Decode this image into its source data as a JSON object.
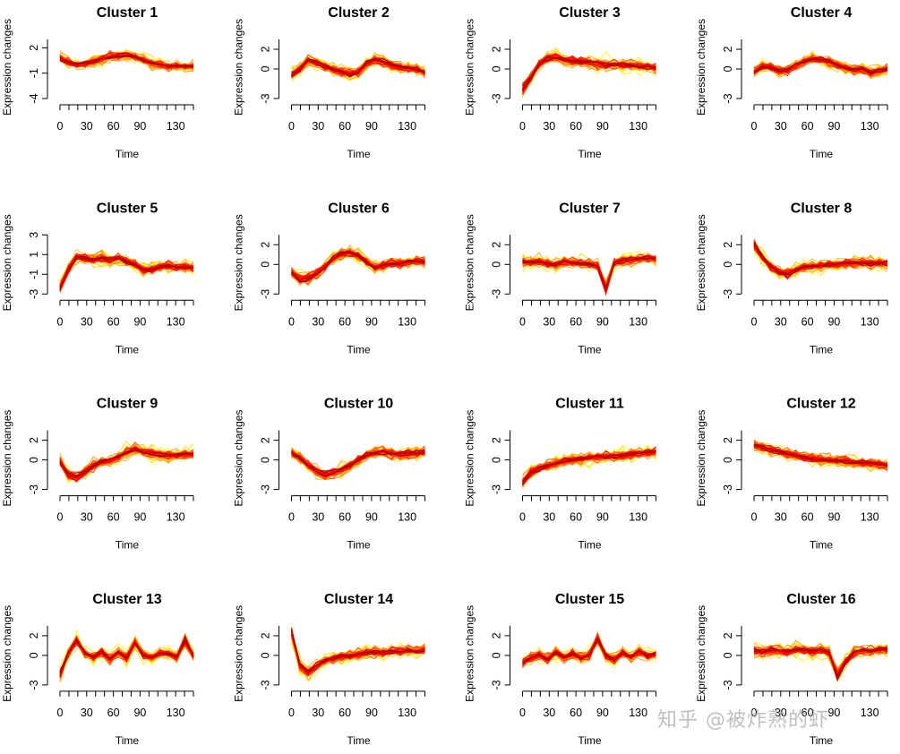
{
  "watermark": "知乎 @被炸熟的虾",
  "colors": {
    "low": "#ffff00",
    "high": "#ff0000",
    "dark": "#b00000",
    "axis": "#000000"
  },
  "chart_data": [
    {
      "type": "line",
      "title": "Cluster 1",
      "xlabel": "Time",
      "ylabel": "Expression changes",
      "yticks": [
        "2",
        "-1",
        "-4"
      ],
      "ylim": [
        -4,
        3
      ],
      "xticks": [
        "0",
        "30",
        "60",
        "90",
        "130"
      ],
      "xlim": [
        0,
        150
      ],
      "profile": [
        0.8,
        0.3,
        0,
        0.2,
        0.4,
        0.7,
        1,
        1.1,
        1.2,
        1,
        0.6,
        0.2,
        0,
        -0.2,
        -0.1,
        -0.3,
        -0.2
      ]
    },
    {
      "type": "line",
      "title": "Cluster 2",
      "xlabel": "Time",
      "ylabel": "Expression changes",
      "yticks": [
        "2",
        "0",
        "-3"
      ],
      "ylim": [
        -3,
        3
      ],
      "xticks": [
        "0",
        "30",
        "60",
        "90",
        "130"
      ],
      "xlim": [
        0,
        150
      ],
      "profile": [
        -0.6,
        -0.1,
        0.9,
        0.7,
        0.3,
        0,
        -0.3,
        -0.5,
        -0.4,
        0.6,
        1,
        0.8,
        0.4,
        0.2,
        0.1,
        0,
        -0.4
      ]
    },
    {
      "type": "line",
      "title": "Cluster 3",
      "xlabel": "Time",
      "ylabel": "Expression changes",
      "yticks": [
        "2",
        "0",
        "-3"
      ],
      "ylim": [
        -3,
        3
      ],
      "xticks": [
        "0",
        "30",
        "60",
        "90",
        "130"
      ],
      "xlim": [
        0,
        150
      ],
      "profile": [
        -2.2,
        -1,
        0.6,
        1.2,
        1.3,
        1,
        0.9,
        0.8,
        0.7,
        0.6,
        0.5,
        0.5,
        0.4,
        0.4,
        0.3,
        0.2,
        0.1
      ]
    },
    {
      "type": "line",
      "title": "Cluster 4",
      "xlabel": "Time",
      "ylabel": "Expression changes",
      "yticks": [
        "2",
        "0",
        "-3"
      ],
      "ylim": [
        -3,
        3
      ],
      "xticks": [
        "0",
        "30",
        "60",
        "90",
        "130"
      ],
      "xlim": [
        0,
        150
      ],
      "profile": [
        -0.3,
        0.3,
        0.2,
        -0.2,
        -0.1,
        0.4,
        0.8,
        1.1,
        1,
        0.8,
        0.4,
        0.1,
        -0.1,
        0,
        -0.4,
        -0.1,
        0
      ]
    },
    {
      "type": "line",
      "title": "Cluster 5",
      "xlabel": "Time",
      "ylabel": "Expression changes",
      "yticks": [
        "3",
        "1",
        "-1",
        "-3"
      ],
      "ylim": [
        -3,
        3
      ],
      "xticks": [
        "0",
        "30",
        "60",
        "90",
        "130"
      ],
      "xlim": [
        0,
        150
      ],
      "profile": [
        -2.4,
        -0.5,
        0.8,
        0.7,
        0.5,
        0.6,
        0.4,
        0.7,
        0.3,
        0,
        -0.6,
        -0.5,
        -0.2,
        -0.1,
        -0.3,
        -0.2,
        -0.4
      ]
    },
    {
      "type": "line",
      "title": "Cluster 6",
      "xlabel": "Time",
      "ylabel": "Expression changes",
      "yticks": [
        "2",
        "0",
        "-3"
      ],
      "ylim": [
        -3,
        3
      ],
      "xticks": [
        "0",
        "30",
        "60",
        "90",
        "130"
      ],
      "xlim": [
        0,
        150
      ],
      "profile": [
        -0.8,
        -1.6,
        -1.5,
        -1,
        -0.2,
        0.7,
        1.2,
        1.3,
        1,
        0.3,
        -0.3,
        0,
        0.2,
        0.1,
        0.3,
        0.4,
        0.2
      ]
    },
    {
      "type": "line",
      "title": "Cluster 7",
      "xlabel": "Time",
      "ylabel": "Expression changes",
      "yticks": [
        "2",
        "0",
        "-3"
      ],
      "ylim": [
        -3,
        3
      ],
      "xticks": [
        "0",
        "30",
        "60",
        "90",
        "130"
      ],
      "xlim": [
        0,
        150
      ],
      "profile": [
        0.3,
        0.2,
        0.3,
        0.1,
        0,
        0.3,
        0.2,
        0.1,
        0,
        -0.2,
        -2.5,
        0.1,
        0.4,
        0.5,
        0.6,
        0.7,
        0.6
      ]
    },
    {
      "type": "line",
      "title": "Cluster 8",
      "xlabel": "Time",
      "ylabel": "Expression changes",
      "yticks": [
        "2",
        "0",
        "-3"
      ],
      "ylim": [
        -3,
        3
      ],
      "xticks": [
        "0",
        "30",
        "60",
        "90",
        "130"
      ],
      "xlim": [
        0,
        150
      ],
      "profile": [
        2.2,
        0.8,
        -0.2,
        -0.8,
        -1,
        -0.6,
        -0.3,
        -0.2,
        -0.1,
        0,
        0,
        0.1,
        0.1,
        0.2,
        0.1,
        0.2,
        0.1
      ]
    },
    {
      "type": "line",
      "title": "Cluster 9",
      "xlabel": "Time",
      "ylabel": "Expression changes",
      "yticks": [
        "2",
        "0",
        "-3"
      ],
      "ylim": [
        -3,
        3
      ],
      "xticks": [
        "0",
        "30",
        "60",
        "90",
        "130"
      ],
      "xlim": [
        0,
        150
      ],
      "profile": [
        -0.2,
        -1.6,
        -1.9,
        -1.3,
        -0.6,
        -0.2,
        0,
        0.3,
        0.8,
        1.2,
        0.9,
        0.7,
        0.6,
        0.5,
        0.5,
        0.6,
        0.6
      ]
    },
    {
      "type": "line",
      "title": "Cluster 10",
      "xlabel": "Time",
      "ylabel": "Expression changes",
      "yticks": [
        "2",
        "0",
        "-3"
      ],
      "ylim": [
        -3,
        3
      ],
      "xticks": [
        "0",
        "30",
        "60",
        "90",
        "130"
      ],
      "xlim": [
        0,
        150
      ],
      "profile": [
        0.8,
        0.2,
        -0.6,
        -1.3,
        -1.7,
        -1.4,
        -1,
        -0.6,
        0,
        0.5,
        0.8,
        0.9,
        0.7,
        0.6,
        0.7,
        0.8,
        0.9
      ]
    },
    {
      "type": "line",
      "title": "Cluster 11",
      "xlabel": "Time",
      "ylabel": "Expression changes",
      "yticks": [
        "2",
        "0",
        "-3"
      ],
      "ylim": [
        -3,
        3
      ],
      "xticks": [
        "0",
        "30",
        "60",
        "90",
        "130"
      ],
      "xlim": [
        0,
        150
      ],
      "profile": [
        -2.4,
        -1.3,
        -0.9,
        -0.6,
        -0.3,
        -0.1,
        0,
        0.1,
        0.2,
        0.3,
        0.4,
        0.4,
        0.5,
        0.6,
        0.7,
        0.8,
        0.9
      ]
    },
    {
      "type": "line",
      "title": "Cluster 12",
      "xlabel": "Time",
      "ylabel": "Expression changes",
      "yticks": [
        "2",
        "0",
        "-3"
      ],
      "ylim": [
        -3,
        3
      ],
      "xticks": [
        "0",
        "30",
        "60",
        "90",
        "130"
      ],
      "xlim": [
        0,
        150
      ],
      "profile": [
        1.6,
        1.4,
        1.1,
        0.9,
        0.7,
        0.5,
        0.3,
        0.2,
        0.1,
        0,
        -0.1,
        -0.2,
        -0.3,
        -0.3,
        -0.4,
        -0.5,
        -0.6
      ]
    },
    {
      "type": "line",
      "title": "Cluster 13",
      "xlabel": "Time",
      "ylabel": "Expression changes",
      "yticks": [
        "2",
        "0",
        "-3"
      ],
      "ylim": [
        -3,
        3
      ],
      "xticks": [
        "0",
        "30",
        "60",
        "90",
        "130"
      ],
      "xlim": [
        0,
        150
      ],
      "profile": [
        -2,
        0.2,
        1.6,
        0.3,
        -0.2,
        0.3,
        -0.4,
        0.4,
        -0.3,
        1.4,
        0.1,
        -0.3,
        0.3,
        0.2,
        -0.2,
        1.6,
        0
      ]
    },
    {
      "type": "line",
      "title": "Cluster 14",
      "xlabel": "Time",
      "ylabel": "Expression changes",
      "yticks": [
        "2",
        "0",
        "-3"
      ],
      "ylim": [
        -3,
        3
      ],
      "xticks": [
        "0",
        "30",
        "60",
        "90",
        "130"
      ],
      "xlim": [
        0,
        150
      ],
      "profile": [
        2.6,
        -1.1,
        -1.9,
        -1.2,
        -0.6,
        -0.3,
        -0.1,
        0,
        0.1,
        0.3,
        0.4,
        0.3,
        0.5,
        0.4,
        0.6,
        0.5,
        0.6
      ]
    },
    {
      "type": "line",
      "title": "Cluster 15",
      "xlabel": "Time",
      "ylabel": "Expression changes",
      "yticks": [
        "2",
        "0",
        "-3"
      ],
      "ylim": [
        -3,
        3
      ],
      "xticks": [
        "0",
        "30",
        "60",
        "90",
        "130"
      ],
      "xlim": [
        0,
        150
      ],
      "profile": [
        -0.8,
        -0.3,
        0,
        -0.4,
        0.4,
        -0.2,
        0.2,
        -0.3,
        0.1,
        1.8,
        0,
        -0.5,
        0.3,
        -0.2,
        0.5,
        -0.1,
        0.2
      ]
    },
    {
      "type": "line",
      "title": "Cluster 16",
      "xlabel": "Time",
      "ylabel": "Expression changes",
      "yticks": [
        "2",
        "0",
        "-3"
      ],
      "ylim": [
        -3,
        3
      ],
      "xticks": [
        "0",
        "30",
        "60",
        "90",
        "130"
      ],
      "xlim": [
        0,
        150
      ],
      "profile": [
        0.5,
        0.4,
        0.6,
        0.5,
        0.4,
        0.6,
        0.5,
        0.4,
        0.6,
        0.3,
        -2.2,
        -0.6,
        0.3,
        0.6,
        0.5,
        0.7,
        0.6
      ]
    }
  ]
}
